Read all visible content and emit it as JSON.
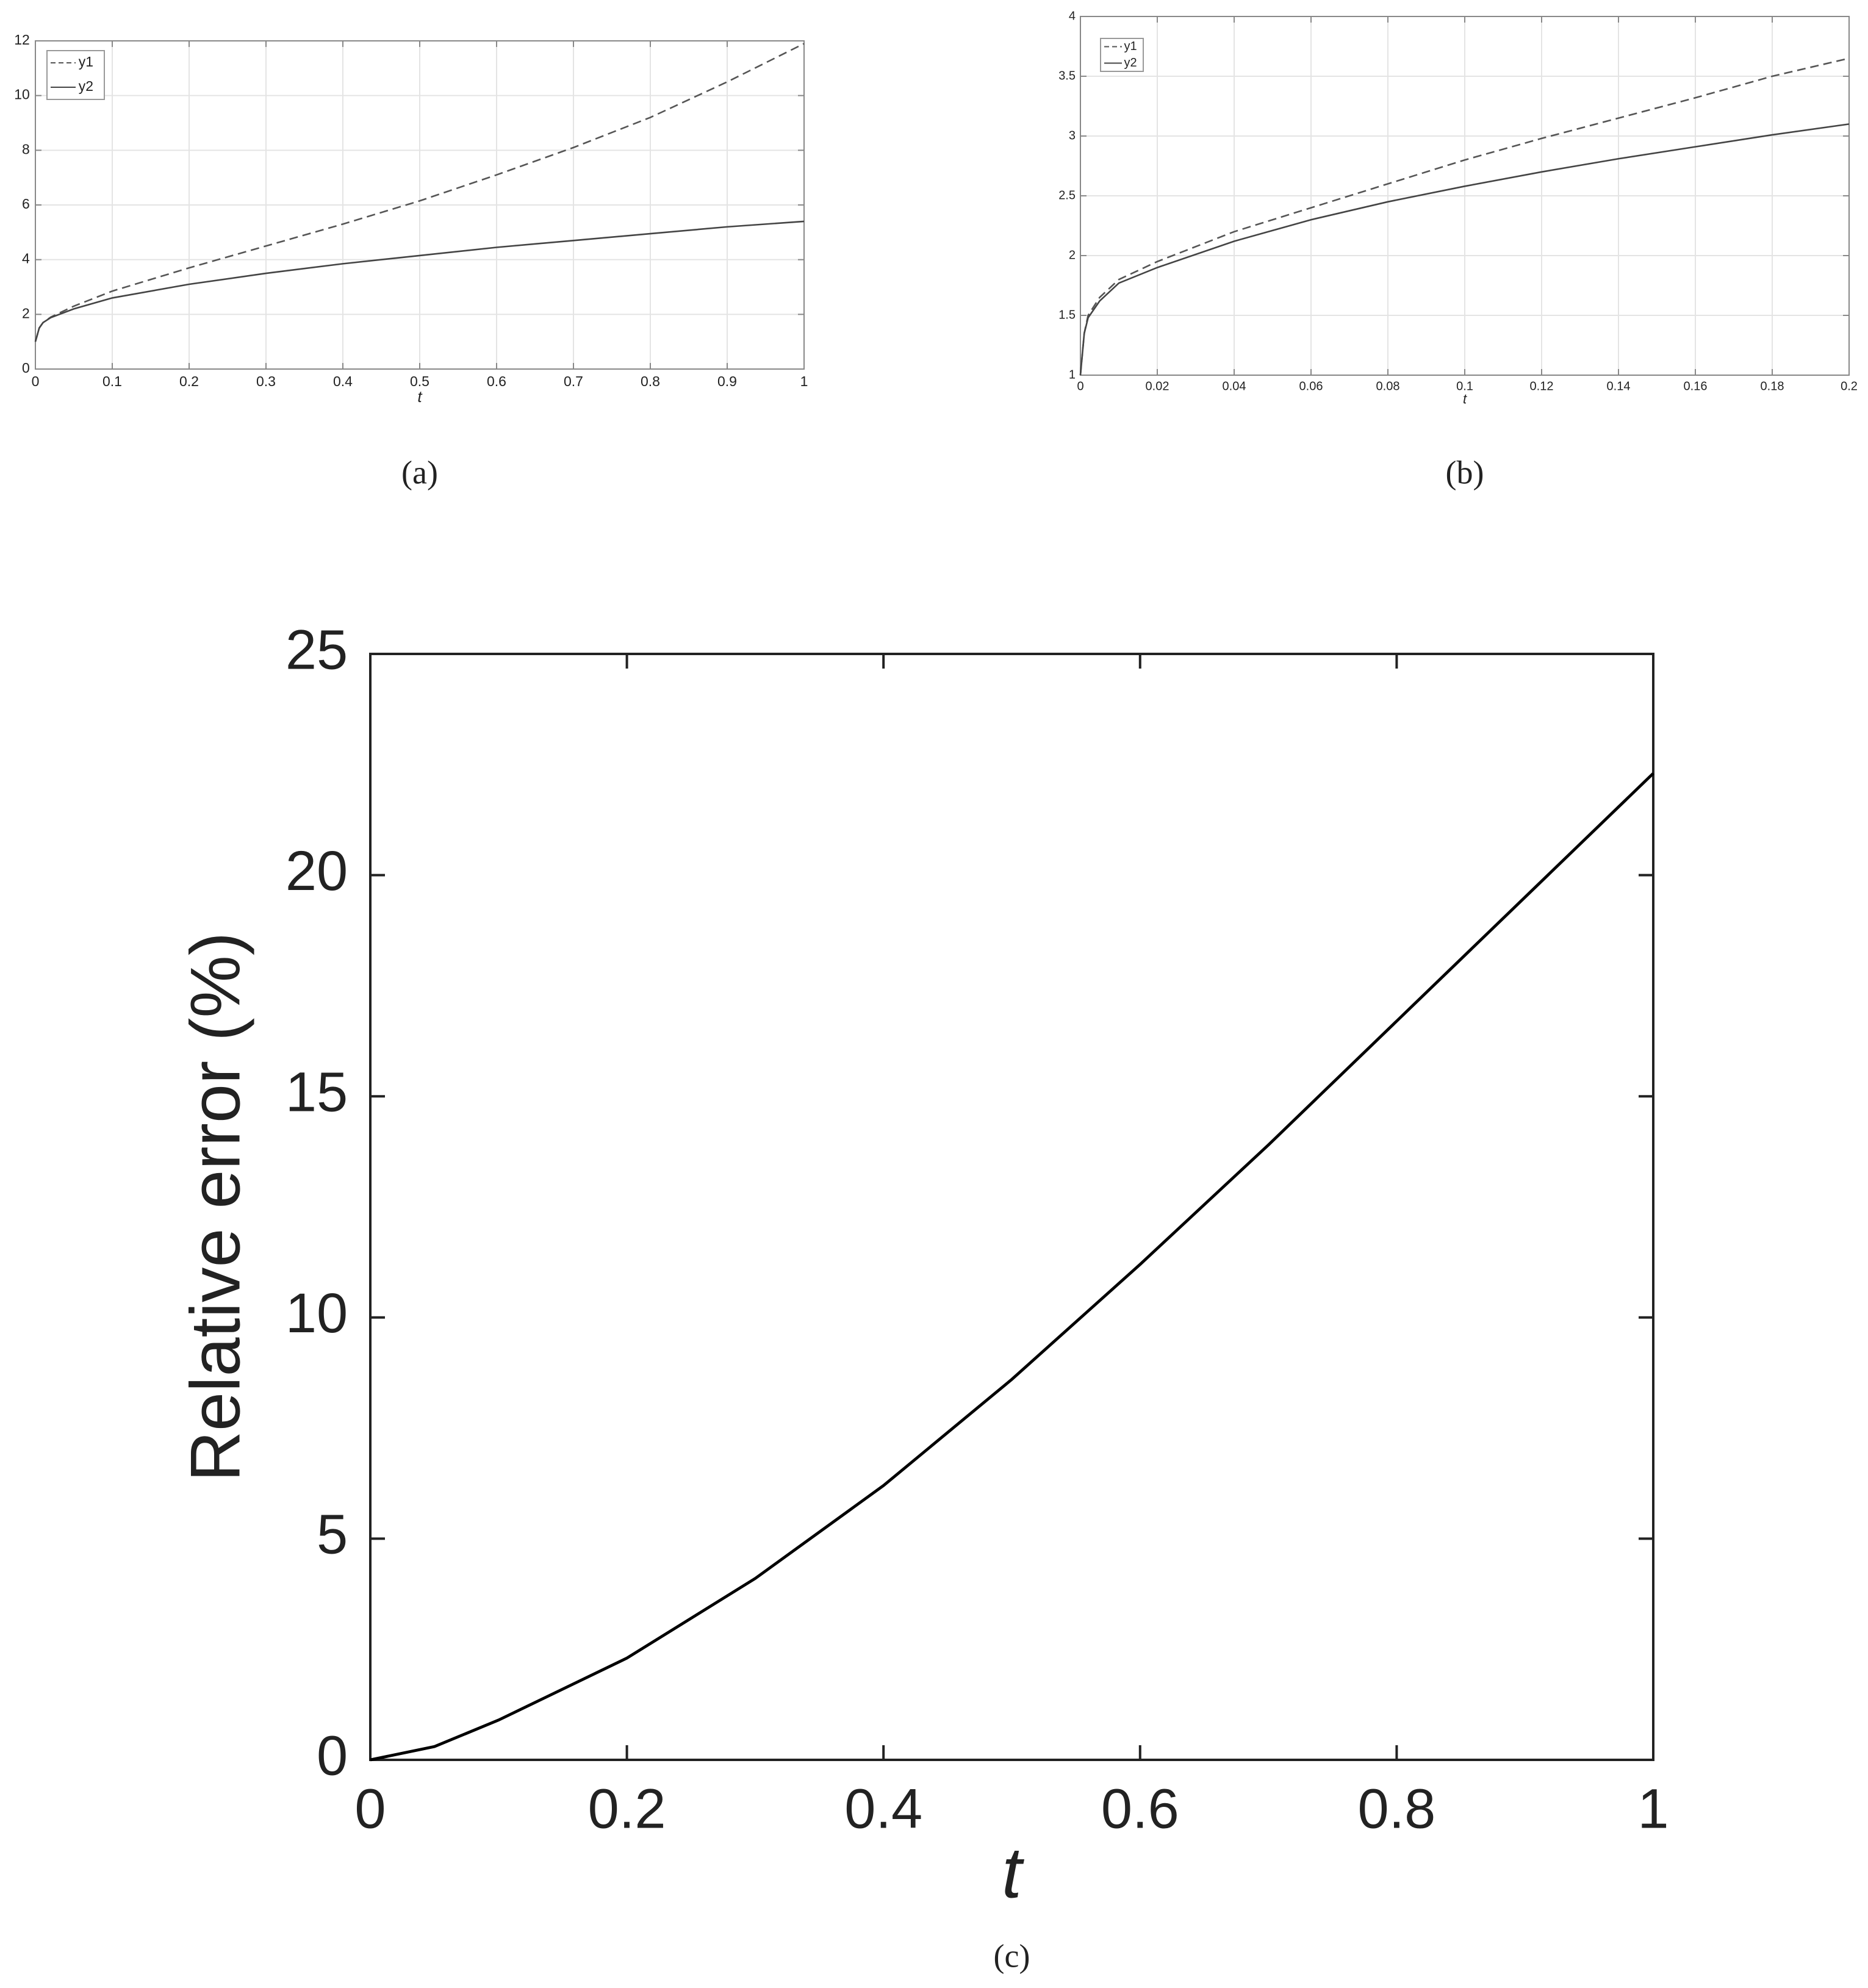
{
  "chart_data": [
    {
      "type": "line",
      "caption": "(a)",
      "xlabel": "t",
      "x": [
        0,
        0.005,
        0.01,
        0.02,
        0.05,
        0.1,
        0.2,
        0.3,
        0.4,
        0.5,
        0.6,
        0.7,
        0.8,
        0.9,
        1
      ],
      "series": [
        {
          "name": "y1",
          "color": "#555555",
          "style": "dashed",
          "values": [
            1,
            1.5,
            1.7,
            1.9,
            2.3,
            2.85,
            3.7,
            4.5,
            5.3,
            6.15,
            7.1,
            8.1,
            9.2,
            10.5,
            11.9
          ]
        },
        {
          "name": "y2",
          "color": "#444444",
          "style": "solid",
          "values": [
            1,
            1.5,
            1.7,
            1.88,
            2.2,
            2.6,
            3.1,
            3.5,
            3.85,
            4.15,
            4.45,
            4.7,
            4.95,
            5.2,
            5.4
          ]
        }
      ],
      "xlim": [
        0,
        1
      ],
      "xticks": [
        0,
        0.1,
        0.2,
        0.3,
        0.4,
        0.5,
        0.6,
        0.7,
        0.8,
        0.9,
        1
      ],
      "ylim": [
        0,
        12
      ],
      "yticks": [
        0,
        2,
        4,
        6,
        8,
        10,
        12
      ],
      "grid": true,
      "legend": "upper left"
    },
    {
      "type": "line",
      "caption": "(b)",
      "xlabel": "t",
      "x": [
        0,
        0.001,
        0.002,
        0.005,
        0.01,
        0.02,
        0.04,
        0.06,
        0.08,
        0.1,
        0.12,
        0.14,
        0.16,
        0.18,
        0.2
      ],
      "series": [
        {
          "name": "y1",
          "color": "#555555",
          "style": "dashed",
          "values": [
            1,
            1.35,
            1.5,
            1.65,
            1.8,
            1.95,
            2.2,
            2.4,
            2.6,
            2.8,
            2.98,
            3.15,
            3.32,
            3.5,
            3.65
          ]
        },
        {
          "name": "y2",
          "color": "#444444",
          "style": "solid",
          "values": [
            1,
            1.35,
            1.48,
            1.62,
            1.77,
            1.9,
            2.12,
            2.3,
            2.45,
            2.58,
            2.7,
            2.81,
            2.91,
            3.01,
            3.1
          ]
        }
      ],
      "xlim": [
        0,
        0.2
      ],
      "xticks": [
        0,
        0.02,
        0.04,
        0.06,
        0.08,
        0.1,
        0.12,
        0.14,
        0.16,
        0.18,
        0.2
      ],
      "ylim": [
        1,
        4
      ],
      "yticks": [
        1,
        1.5,
        2,
        2.5,
        3,
        3.5,
        4
      ],
      "grid": true,
      "legend": "upper left"
    },
    {
      "type": "line",
      "caption": "(c)",
      "xlabel": "t",
      "ylabel": "Relative error (%)",
      "x": [
        0,
        0.05,
        0.1,
        0.2,
        0.3,
        0.4,
        0.5,
        0.6,
        0.7,
        0.8,
        0.9,
        1
      ],
      "series": [
        {
          "color": "#000000",
          "style": "solid",
          "values": [
            0,
            0.3,
            0.9,
            2.3,
            4.1,
            6.2,
            8.6,
            11.2,
            13.9,
            16.7,
            19.5,
            22.3
          ]
        }
      ],
      "xlim": [
        0,
        1
      ],
      "xticks": [
        0,
        0.2,
        0.4,
        0.6,
        0.8,
        1
      ],
      "ylim": [
        0,
        25
      ],
      "yticks": [
        0,
        5,
        10,
        15,
        20,
        25
      ],
      "grid": false
    }
  ]
}
